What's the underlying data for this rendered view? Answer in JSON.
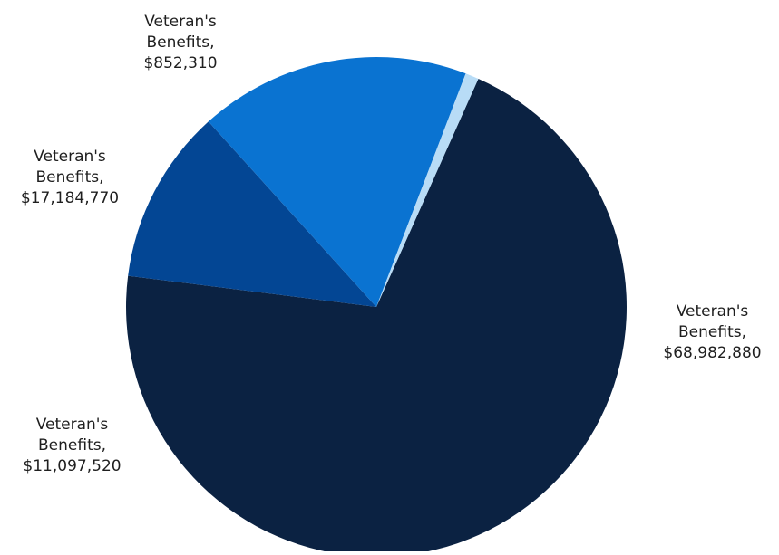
{
  "chart_data": {
    "type": "pie",
    "title": "",
    "slices": [
      {
        "label": "Veteran's Benefits,\n$68,982,880",
        "value": 68982880,
        "color": "#0b2242"
      },
      {
        "label": "Veteran's Benefits,\n$11,097,520",
        "value": 11097520,
        "color": "#034694"
      },
      {
        "label": "Veteran's Benefits,\n$17,184,770",
        "value": 17184770,
        "color": "#0a73d1"
      },
      {
        "label": "Veteran's Benefits,\n$852,310",
        "value": 852310,
        "color": "#b8dcf6"
      }
    ],
    "legend": "none"
  }
}
